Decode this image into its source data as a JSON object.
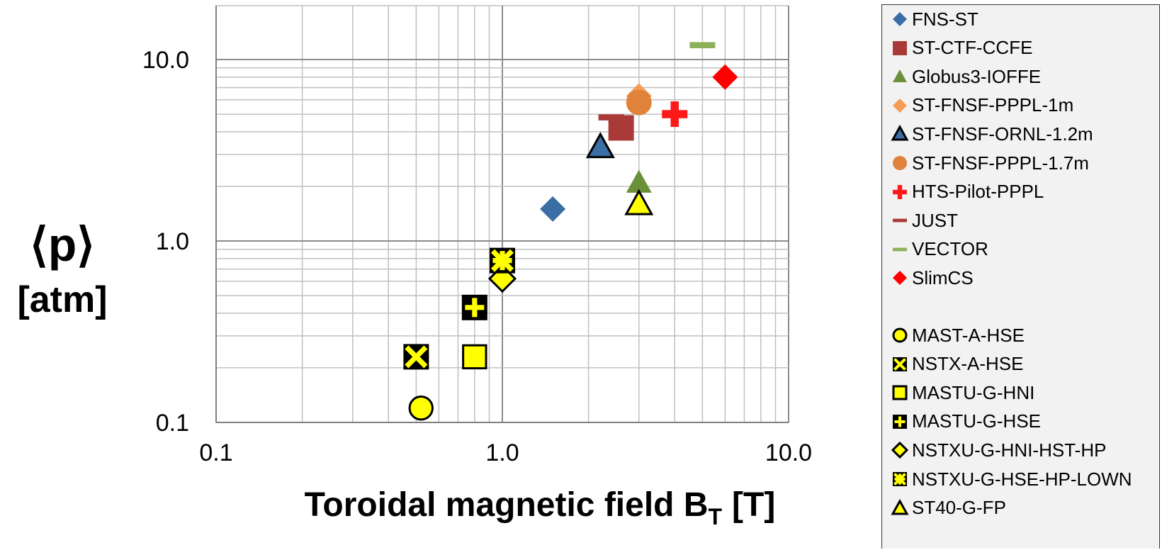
{
  "chart_data": {
    "type": "scatter",
    "xlabel": "Toroidal magnetic field B",
    "xlabel_sub": "T",
    "xlabel_unit": "[T]",
    "ylabel_top": "⟨p⟩",
    "ylabel_bottom": "[atm]",
    "xscale": "log",
    "yscale": "log",
    "xlim": [
      0.1,
      10.0
    ],
    "ylim": [
      0.1,
      20
    ],
    "xticks": [
      "0.1",
      "1.0",
      "10.0"
    ],
    "yticks": [
      "0.1",
      "1.0",
      "10.0"
    ],
    "grid": true,
    "legend_position": "right",
    "series": [
      {
        "name": "FNS-ST",
        "marker": "diamond",
        "color": "#3a6ea5",
        "points": [
          [
            1.5,
            1.5
          ]
        ]
      },
      {
        "name": "ST-CTF-CCFE",
        "marker": "square",
        "color": "#a93a37",
        "points": [
          [
            2.6,
            4.2
          ]
        ]
      },
      {
        "name": "Globus3-IOFFE",
        "marker": "triangle",
        "color": "#6a9139",
        "points": [
          [
            3.0,
            2.1
          ]
        ]
      },
      {
        "name": "ST-FNSF-PPPL-1m",
        "marker": "diamond",
        "color": "#f59d56",
        "points": [
          [
            3.0,
            6.3
          ]
        ]
      },
      {
        "name": "ST-FNSF-ORNL-1.2m",
        "marker": "triangle-outline",
        "color": "#3a6ea5",
        "points": [
          [
            2.2,
            3.3
          ]
        ]
      },
      {
        "name": "ST-FNSF-PPPL-1.7m",
        "marker": "circle",
        "color": "#e0823a",
        "points": [
          [
            3.0,
            5.8
          ]
        ]
      },
      {
        "name": "HTS-Pilot-PPPL",
        "marker": "plus",
        "color": "#ff1a1a",
        "points": [
          [
            4.0,
            5.0
          ]
        ]
      },
      {
        "name": "JUST",
        "marker": "dash",
        "color": "#a93a37",
        "points": [
          [
            2.4,
            4.8
          ]
        ]
      },
      {
        "name": "VECTOR",
        "marker": "dash",
        "color": "#8db05a",
        "points": [
          [
            5.0,
            12.0
          ]
        ]
      },
      {
        "name": "SlimCS",
        "marker": "diamond",
        "color": "#ff0000",
        "points": [
          [
            6.0,
            8.0
          ]
        ]
      },
      {
        "name": "MAST-A-HSE",
        "marker": "circle-yellow",
        "color": "#ffff00",
        "points": [
          [
            0.52,
            0.12
          ]
        ]
      },
      {
        "name": "NSTX-A-HSE",
        "marker": "x-box",
        "color": "#ffff00",
        "points": [
          [
            0.5,
            0.23
          ]
        ]
      },
      {
        "name": "MASTU-G-HNI",
        "marker": "square-yellow",
        "color": "#ffff00",
        "points": [
          [
            0.8,
            0.23
          ]
        ]
      },
      {
        "name": "MASTU-G-HSE",
        "marker": "plus-box",
        "color": "#ffff00",
        "points": [
          [
            0.8,
            0.43
          ]
        ]
      },
      {
        "name": "NSTXU-G-HNI-HST-HP",
        "marker": "diamond-yellow",
        "color": "#ffff00",
        "points": [
          [
            1.0,
            0.62
          ]
        ]
      },
      {
        "name": "NSTXU-G-HSE-HP-LOWN",
        "marker": "star-box",
        "color": "#ffff00",
        "points": [
          [
            1.0,
            0.78
          ]
        ]
      },
      {
        "name": "ST40-G-FP",
        "marker": "triangle-yellow",
        "color": "#ffff00",
        "points": [
          [
            3.0,
            1.6
          ]
        ]
      }
    ]
  }
}
